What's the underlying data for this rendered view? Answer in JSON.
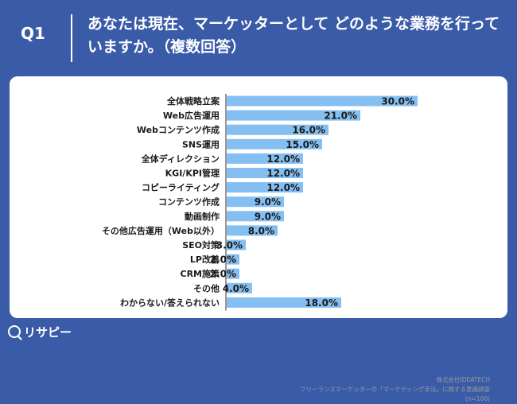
{
  "question": {
    "label": "Q1",
    "title": "あなたは現在、マーケッターとして どのような業務を行っていますか。（複数回答）"
  },
  "chart_data": {
    "type": "bar",
    "orientation": "horizontal",
    "categories": [
      "全体戦略立案",
      "Web広告運用",
      "Webコンテンツ作成",
      "SNS運用",
      "全体ディレクション",
      "KGI/KPI管理",
      "コピーライティング",
      "コンテンツ作成",
      "動画制作",
      "その他広告運用（Web以外）",
      "SEO対策",
      "LP改善",
      "CRM施策",
      "その他",
      "わからない/答えられない"
    ],
    "values": [
      30.0,
      21.0,
      16.0,
      15.0,
      12.0,
      12.0,
      12.0,
      9.0,
      9.0,
      8.0,
      3.0,
      2.0,
      2.0,
      4.0,
      18.0
    ],
    "value_labels": [
      "30.0%",
      "21.0%",
      "16.0%",
      "15.0%",
      "12.0%",
      "12.0%",
      "12.0%",
      "9.0%",
      "9.0%",
      "8.0%",
      "3.0%",
      "2.0%",
      "2.0%",
      "4.0%",
      "18.0%"
    ],
    "xlim": [
      0,
      30
    ],
    "bar_color": "#85bff2",
    "grid": false,
    "legend": "none"
  },
  "source": {
    "company": "株式会社IDEATECH",
    "survey": "フリーランスマーケッターの「マーケティング手法」に関する意識調査",
    "sample": "(n=100)"
  },
  "brand": {
    "logo_text": "リサピー"
  },
  "colors": {
    "background": "#3a5ba8",
    "bar": "#85bff2",
    "text": "#1a1a1a"
  }
}
